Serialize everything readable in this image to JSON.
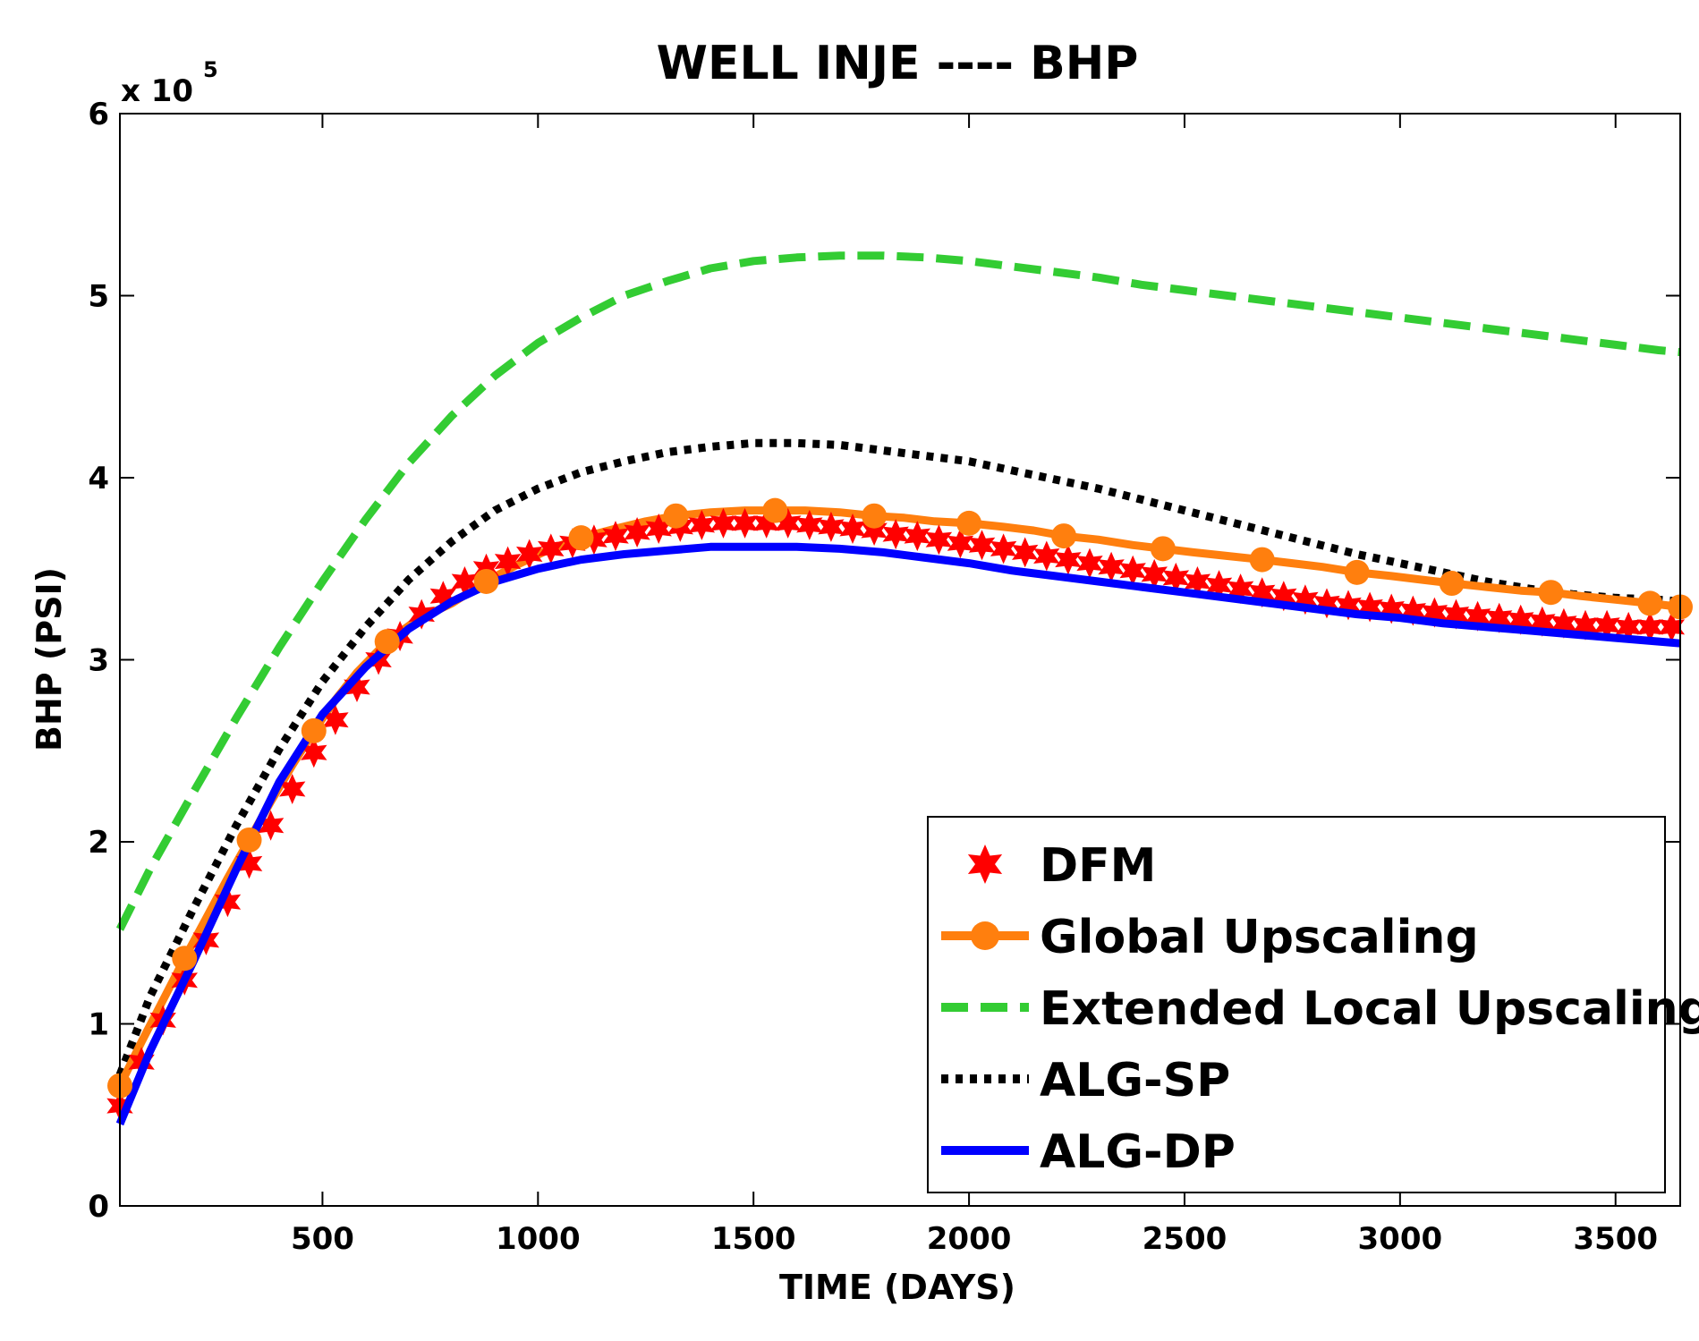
{
  "chart_data": {
    "type": "line",
    "title": "WELL INJE ---- BHP",
    "xlabel": "TIME (DAYS)",
    "ylabel": "BHP (PSI)",
    "y_multiplier_label": "x 10",
    "y_multiplier_exponent": "5",
    "xlim": [
      30,
      3650
    ],
    "ylim": [
      0,
      600000
    ],
    "xticks": [
      500,
      1000,
      1500,
      2000,
      2500,
      3000,
      3500
    ],
    "yticks": [
      0,
      100000,
      200000,
      300000,
      400000,
      500000,
      600000
    ],
    "ytick_labels": [
      "0",
      "1",
      "2",
      "3",
      "4",
      "5",
      "6"
    ],
    "grid": false,
    "legend_position": "bottom-right",
    "series": [
      {
        "name": "DFM",
        "color": "#ff0000",
        "style": "markers",
        "marker": "hexagram",
        "x": [
          30,
          80,
          130,
          180,
          230,
          280,
          330,
          380,
          430,
          480,
          530,
          580,
          630,
          680,
          730,
          780,
          830,
          880,
          930,
          980,
          1030,
          1080,
          1130,
          1180,
          1230,
          1280,
          1330,
          1380,
          1430,
          1480,
          1530,
          1580,
          1630,
          1680,
          1730,
          1780,
          1830,
          1880,
          1930,
          1980,
          2030,
          2080,
          2130,
          2180,
          2230,
          2280,
          2330,
          2380,
          2430,
          2480,
          2530,
          2580,
          2630,
          2680,
          2730,
          2780,
          2830,
          2880,
          2930,
          2980,
          3030,
          3080,
          3130,
          3180,
          3230,
          3280,
          3330,
          3380,
          3430,
          3480,
          3530,
          3580,
          3630
        ],
        "values": [
          55000,
          79000,
          102000,
          124000,
          146000,
          167000,
          188000,
          209000,
          229000,
          249000,
          267000,
          285000,
          300000,
          313000,
          325000,
          335000,
          343000,
          350000,
          354000,
          358000,
          361000,
          364000,
          366000,
          368000,
          370000,
          372000,
          373000,
          374000,
          375000,
          375000,
          375000,
          375000,
          374000,
          373000,
          372000,
          371000,
          369000,
          368000,
          366000,
          364000,
          363000,
          361000,
          359000,
          357000,
          355000,
          353000,
          351000,
          349000,
          347000,
          345000,
          343000,
          341000,
          339000,
          337000,
          335000,
          333000,
          331000,
          330000,
          329000,
          328000,
          327000,
          326000,
          325000,
          324000,
          323000,
          322000,
          321000,
          320000,
          319000,
          319000,
          318000,
          318000,
          318000
        ]
      },
      {
        "name": "Global Upscaling",
        "color": "#ff7f0e",
        "style": "solid",
        "marker": "circle",
        "x": [
          30,
          80,
          130,
          180,
          230,
          280,
          330,
          380,
          430,
          480,
          530,
          580,
          650,
          720,
          800,
          880,
          950,
          1020,
          1100,
          1180,
          1250,
          1320,
          1400,
          1480,
          1550,
          1620,
          1700,
          1780,
          1850,
          1920,
          2000,
          2080,
          2150,
          2220,
          2300,
          2380,
          2450,
          2520,
          2600,
          2680,
          2750,
          2820,
          2900,
          2980,
          3050,
          3120,
          3200,
          3280,
          3350,
          3420,
          3500,
          3580,
          3650
        ],
        "values": [
          66000,
          90000,
          113000,
          136000,
          158000,
          180000,
          201000,
          222000,
          242000,
          261000,
          278000,
          293000,
          310000,
          322000,
          331000,
          343000,
          352000,
          360000,
          367000,
          372000,
          376000,
          379000,
          381000,
          382000,
          382000,
          382000,
          381000,
          379000,
          378000,
          376000,
          375000,
          373000,
          371000,
          368000,
          366000,
          363000,
          361000,
          359000,
          357000,
          355000,
          353000,
          351000,
          348000,
          346000,
          344000,
          342000,
          340000,
          338000,
          337000,
          335000,
          333000,
          331000,
          329000
        ]
      },
      {
        "name": "Extended Local Upscaling",
        "color": "#33cc33",
        "style": "dashed",
        "marker": "none",
        "x": [
          30,
          100,
          200,
          300,
          400,
          500,
          600,
          700,
          800,
          900,
          1000,
          1100,
          1200,
          1300,
          1400,
          1500,
          1600,
          1700,
          1800,
          1900,
          2000,
          2100,
          2200,
          2300,
          2400,
          2500,
          2600,
          2700,
          2800,
          2900,
          3000,
          3100,
          3200,
          3300,
          3400,
          3500,
          3600,
          3650
        ],
        "values": [
          152000,
          185000,
          227000,
          268000,
          307000,
          343000,
          377000,
          408000,
          434000,
          456000,
          474000,
          488000,
          500000,
          508000,
          515000,
          519000,
          521000,
          522000,
          522000,
          521000,
          519000,
          516000,
          513000,
          510000,
          506000,
          503000,
          500000,
          497000,
          494000,
          491000,
          488000,
          485000,
          482000,
          479000,
          476000,
          473000,
          470000,
          469000
        ]
      },
      {
        "name": "ALG-SP",
        "color": "#000000",
        "style": "dotted",
        "marker": "none",
        "x": [
          30,
          100,
          200,
          300,
          400,
          500,
          600,
          700,
          800,
          900,
          1000,
          1100,
          1200,
          1300,
          1400,
          1500,
          1600,
          1700,
          1800,
          1900,
          2000,
          2100,
          2200,
          2300,
          2400,
          2500,
          2600,
          2700,
          2800,
          2900,
          3000,
          3100,
          3200,
          3300,
          3400,
          3500,
          3600,
          3650
        ],
        "values": [
          72000,
          115000,
          163000,
          209000,
          251000,
          288000,
          318000,
          344000,
          365000,
          382000,
          394000,
          403000,
          409000,
          414000,
          417000,
          419000,
          419000,
          418000,
          415000,
          412000,
          409000,
          404000,
          399000,
          394000,
          388000,
          382000,
          376000,
          370000,
          364000,
          358000,
          353000,
          348000,
          343000,
          339000,
          336000,
          334000,
          333000,
          332000
        ]
      },
      {
        "name": "ALG-DP",
        "color": "#0000ff",
        "style": "solid",
        "marker": "none",
        "x": [
          30,
          100,
          200,
          300,
          400,
          500,
          600,
          700,
          800,
          900,
          1000,
          1100,
          1200,
          1300,
          1400,
          1500,
          1600,
          1700,
          1800,
          1900,
          2000,
          2100,
          2200,
          2300,
          2400,
          2500,
          2600,
          2700,
          2800,
          2900,
          3000,
          3100,
          3200,
          3300,
          3400,
          3500,
          3600,
          3650
        ],
        "values": [
          45000,
          85000,
          134000,
          185000,
          233000,
          270000,
          296000,
          317000,
          332000,
          343000,
          350000,
          355000,
          358000,
          360000,
          362000,
          362000,
          362000,
          361000,
          359000,
          356000,
          353000,
          349000,
          346000,
          343000,
          340000,
          337000,
          334000,
          331000,
          328000,
          325000,
          323000,
          320000,
          318000,
          316000,
          314000,
          312000,
          310000,
          309000
        ]
      }
    ]
  }
}
